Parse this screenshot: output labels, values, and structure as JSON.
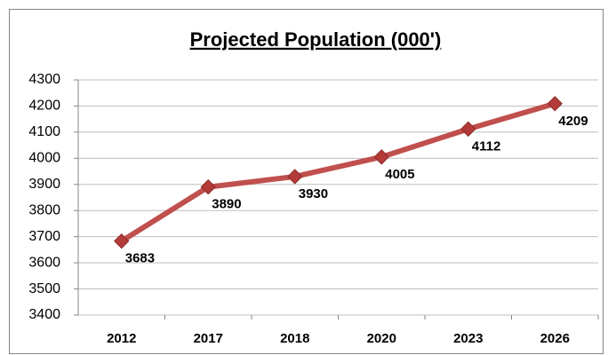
{
  "chart_data": {
    "type": "line",
    "title": "Projected  Population (000')",
    "categories": [
      "2012",
      "2017",
      "2018",
      "2020",
      "2023",
      "2026"
    ],
    "values": [
      3683,
      3890,
      3930,
      4005,
      4112,
      4209
    ],
    "color": "#c0504d",
    "marker_color": "#b23a37",
    "ylim": [
      3400,
      4300
    ],
    "yticks": [
      3400,
      3500,
      3600,
      3700,
      3800,
      3900,
      4000,
      4100,
      4200,
      4300
    ],
    "grid": true,
    "data_labels": true
  }
}
